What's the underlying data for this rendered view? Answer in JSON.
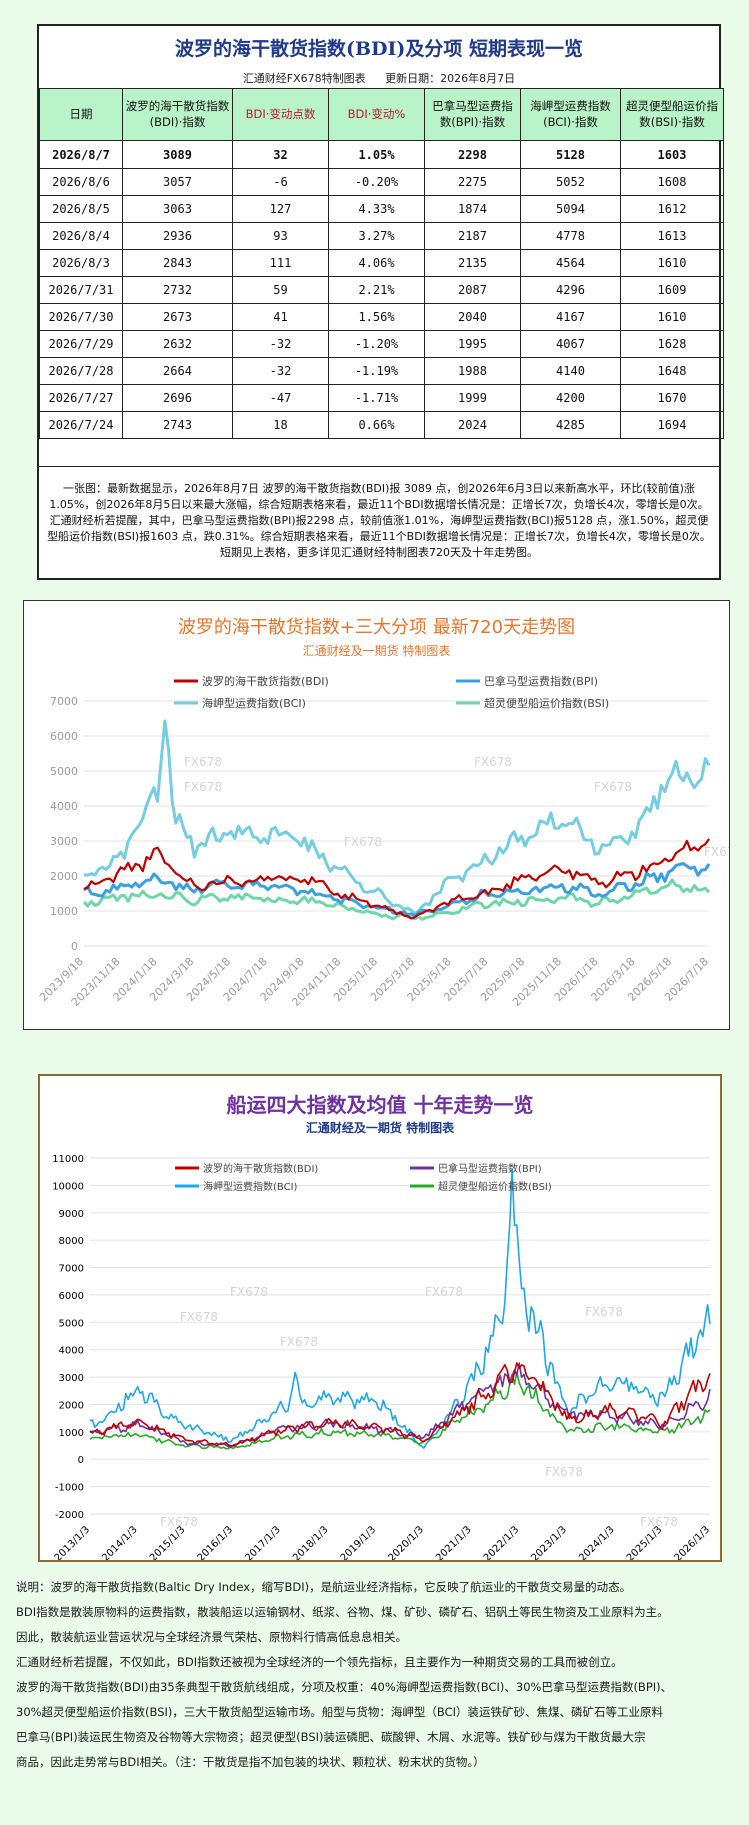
{
  "summary": {
    "title": "波罗的海干散货指数(BDI)及分项  短期表现一览",
    "maker": "汇通财经FX678特制图表",
    "update_date": "更新日期：2026年8月7日",
    "headers": [
      "日期",
      "波罗的海干散货指数(BDI)·指数",
      "BDI·变动点数",
      "BDI·变动%",
      "巴拿马型运费指数(BPI)·指数",
      "海岬型运费指数(BCI)·指数",
      "超灵便型船运价指数(BSI)·指数"
    ],
    "rows": [
      [
        "2026/8/7",
        "3089",
        "32",
        "1.05%",
        "2298",
        "5128",
        "1603"
      ],
      [
        "2026/8/6",
        "3057",
        "-6",
        "-0.20%",
        "2275",
        "5052",
        "1608"
      ],
      [
        "2026/8/5",
        "3063",
        "127",
        "4.33%",
        "1874",
        "5094",
        "1612"
      ],
      [
        "2026/8/4",
        "2936",
        "93",
        "3.27%",
        "2187",
        "4778",
        "1613"
      ],
      [
        "2026/8/3",
        "2843",
        "111",
        "4.06%",
        "2135",
        "4564",
        "1610"
      ],
      [
        "2026/7/31",
        "2732",
        "59",
        "2.21%",
        "2087",
        "4296",
        "1609"
      ],
      [
        "2026/7/30",
        "2673",
        "41",
        "1.56%",
        "2040",
        "4167",
        "1610"
      ],
      [
        "2026/7/29",
        "2632",
        "-32",
        "-1.20%",
        "1995",
        "4067",
        "1628"
      ],
      [
        "2026/7/28",
        "2664",
        "-32",
        "-1.19%",
        "1988",
        "4140",
        "1648"
      ],
      [
        "2026/7/27",
        "2696",
        "-47",
        "-1.71%",
        "1999",
        "4200",
        "1670"
      ],
      [
        "2026/7/24",
        "2743",
        "18",
        "0.66%",
        "2024",
        "4285",
        "1694"
      ]
    ],
    "note": "一张图：最新数据显示，2026年8月7日 波罗的海干散货指数(BDI)报 3089 点，创2026年6月3日以来新高水平，环比(较前值)涨1.05%，创2026年8月5日以来最大涨幅，综合短期表格来看，最近11个BDI数据增长情况是：正增长7次，负增长4次，零增长是0次。汇通财经析若提醒，其中，巴拿马型运费指数(BPI)报2298 点，较前值涨1.01%，海岬型运费指数(BCI)报5128 点，涨1.50%，超灵便型船运价指数(BSI)报1603 点，跌0.31%。综合短期表格来看，最近11个BDI数据增长情况是：正增长7次，负增长4次，零增长是0次。短期见上表格，更多详见汇通财经特制图表720天及十年走势图。"
  },
  "chart_data": [
    {
      "type": "line",
      "title": "波罗的海干散货指数+三大分项  最新720天走势图",
      "subtitle": "汇通财经及一期货 特制图表",
      "watermark": "FX678",
      "x": [
        "2023/9/18",
        "2023/11/18",
        "2024/1/18",
        "2024/3/18",
        "2024/5/18",
        "2024/7/18",
        "2024/9/18",
        "2024/11/18",
        "2025/1/18",
        "2025/3/18",
        "2025/5/18",
        "2025/7/18",
        "2025/9/18",
        "2025/11/18",
        "2026/1/18",
        "2026/3/18",
        "2026/5/18",
        "2026/7/18"
      ],
      "ylim": [
        0,
        7000
      ],
      "yticks": [
        0,
        1000,
        2000,
        3000,
        4000,
        5000,
        6000,
        7000
      ],
      "grid": true,
      "legend": "top",
      "series": [
        {
          "name": "波罗的海干散货指数(BDI)",
          "color": "#c00000",
          "width": 2.2,
          "values": [
            1600,
            2100,
            2600,
            1700,
            1900,
            1900,
            2000,
            1500,
            1100,
            800,
            1300,
            1500,
            2000,
            2200,
            1800,
            2100,
            2500,
            3100
          ]
        },
        {
          "name": "巴拿马型运费指数(BPI)",
          "color": "#3aa0e0",
          "width": 3,
          "values": [
            1500,
            1700,
            1900,
            1600,
            1800,
            1700,
            1600,
            1300,
            1100,
            900,
            1200,
            1500,
            1600,
            1700,
            1500,
            1800,
            2100,
            2300
          ]
        },
        {
          "name": "海岬型运费指数(BCI)",
          "color": "#74cee0",
          "width": 3,
          "values": [
            1900,
            2500,
            4500,
            2800,
            3300,
            3200,
            2900,
            2100,
            1500,
            900,
            1900,
            2500,
            3200,
            3700,
            2800,
            3300,
            5000,
            5100
          ]
        },
        {
          "name": "超灵便型船运价指数(BSI)",
          "color": "#6fd6a8",
          "width": 3,
          "values": [
            1200,
            1400,
            1500,
            1300,
            1400,
            1300,
            1300,
            1100,
            900,
            800,
            1000,
            1200,
            1300,
            1400,
            1200,
            1500,
            1700,
            1600
          ]
        }
      ]
    },
    {
      "type": "line",
      "title": "船运四大指数及均值 十年走势一览",
      "subtitle": "汇通财经及一期货 特制图表",
      "watermark": "FX678",
      "x": [
        "2013/1/3",
        "2014/1/3",
        "2015/1/3",
        "2016/1/3",
        "2017/1/3",
        "2018/1/3",
        "2019/1/3",
        "2020/1/3",
        "2021/1/3",
        "2022/1/3",
        "2023/1/3",
        "2024/1/3",
        "2025/1/3",
        "2026/1/3"
      ],
      "ylim": [
        -2000,
        11000
      ],
      "yticks": [
        -2000,
        -1000,
        0,
        1000,
        2000,
        3000,
        4000,
        5000,
        6000,
        7000,
        8000,
        9000,
        10000,
        11000
      ],
      "grid": true,
      "legend": "top",
      "series": [
        {
          "name": "波罗的海干散货指数(BDI)",
          "color": "#c00000",
          "width": 1.6,
          "values": [
            900,
            1400,
            700,
            500,
            1100,
            1300,
            1200,
            700,
            2000,
            3500,
            1500,
            1800,
            1300,
            3100
          ]
        },
        {
          "name": "巴拿马型运费指数(BPI)",
          "color": "#7030a0",
          "width": 1.6,
          "values": [
            900,
            1300,
            600,
            500,
            1100,
            1300,
            1100,
            800,
            2200,
            3200,
            1700,
            1600,
            1200,
            2300
          ]
        },
        {
          "name": "海岬型运费指数(BCI)",
          "color": "#1ea7e8",
          "width": 1.6,
          "values": [
            1200,
            2500,
            1200,
            700,
            1800,
            2200,
            2200,
            400,
            2800,
            6500,
            1800,
            3000,
            2200,
            5100
          ]
        },
        {
          "name": "超灵便型船运价指数(BSI)",
          "color": "#2aa82a",
          "width": 1.6,
          "values": [
            800,
            900,
            500,
            400,
            800,
            1000,
            900,
            600,
            1700,
            2900,
            1000,
            1200,
            1000,
            1600
          ]
        }
      ]
    }
  ],
  "explanation": [
    "说明：波罗的海干散货指数(Baltic Dry Index，缩写BDI)，是航运业经济指标，它反映了航运业的干散货交易量的动态。",
    "BDI指数是散装原物料的运费指数，散装船运以运输钢材、纸浆、谷物、煤、矿砂、磷矿石、铝矾土等民生物资及工业原料为主。",
    "因此，散装航运业营运状况与全球经济景气荣枯、原物料行情高低息息相关。",
    "汇通财经析若提醒，不仅如此，BDI指数还被视为全球经济的一个领先指标，且主要作为一种期货交易的工具而被创立。",
    "波罗的海干散货指数(BDI)由35条典型干散货航线组成，分项及权重：40%海岬型运费指数(BCI)、30%巴拿马型运费指数(BPI)、",
    "30%超灵便型船运价指数(BSI)，三大干散货船型运输市场。船型与货物：海岬型（BCI）装运铁矿砂、焦煤、磷矿石等工业原料",
    "巴拿马(BPI)装运民生物资及谷物等大宗物资；超灵便型(BSI)装运磷肥、碳酸钾、木屑、水泥等。铁矿砂与煤为干散货最大宗",
    "商品，因此走势常与BDI相关。（注：干散货是指不加包装的块状、颗粒状、粉末状的货物。）"
  ]
}
